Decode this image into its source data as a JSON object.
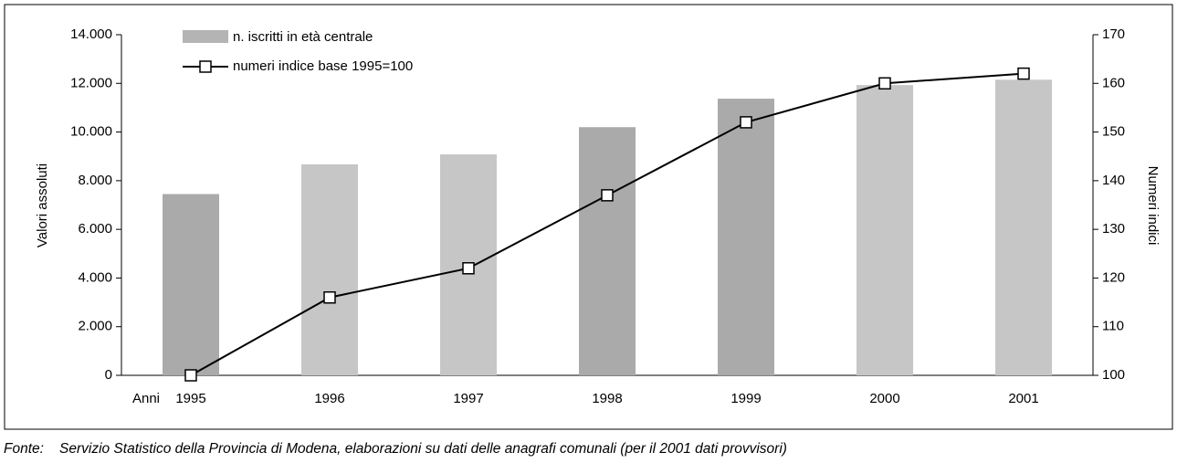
{
  "chart_data": {
    "type": "bar_line",
    "categories_label": "Anni",
    "categories": [
      "1995",
      "1996",
      "1997",
      "1998",
      "1999",
      "2000",
      "2001"
    ],
    "series": [
      {
        "name": "n. iscritti in età centrale",
        "type": "bar",
        "color": "#b4b4b4",
        "bar_colors": [
          "#aaaaaa",
          "#c6c6c6",
          "#c6c6c6",
          "#aaaaaa",
          "#aaaaaa",
          "#c6c6c6",
          "#c6c6c6"
        ],
        "values": [
          7450,
          8670,
          9080,
          10200,
          11370,
          11930,
          12150
        ]
      },
      {
        "name": "numeri indice base 1995=100",
        "type": "line",
        "color": "#000000",
        "axis": "y2",
        "values": [
          100,
          116,
          122,
          137,
          152,
          160,
          162
        ]
      }
    ],
    "ylabel": "Valori assoluti",
    "y2label": "Numeri indici",
    "ylim": [
      0,
      14000
    ],
    "yticks": [
      0,
      {
        "value": 2000,
        "label": "2.000"
      },
      {
        "value": 4000,
        "label": "4.000"
      },
      {
        "value": 6000,
        "label": "6.000"
      },
      {
        "value": 8000,
        "label": "8.000"
      },
      {
        "value": 10000,
        "label": "10.000"
      },
      {
        "value": 12000,
        "label": "12.000"
      },
      {
        "value": 14000,
        "label": "14.000"
      }
    ],
    "y2lim": [
      100,
      170
    ],
    "y2ticks": [
      100,
      110,
      120,
      130,
      140,
      150,
      160,
      170
    ],
    "source_label": "Fonte:",
    "source": "Servizio Statistico della Provincia di Modena, elaborazioni su dati delle anagrafi comunali (per il 2001 dati provvisori)"
  }
}
